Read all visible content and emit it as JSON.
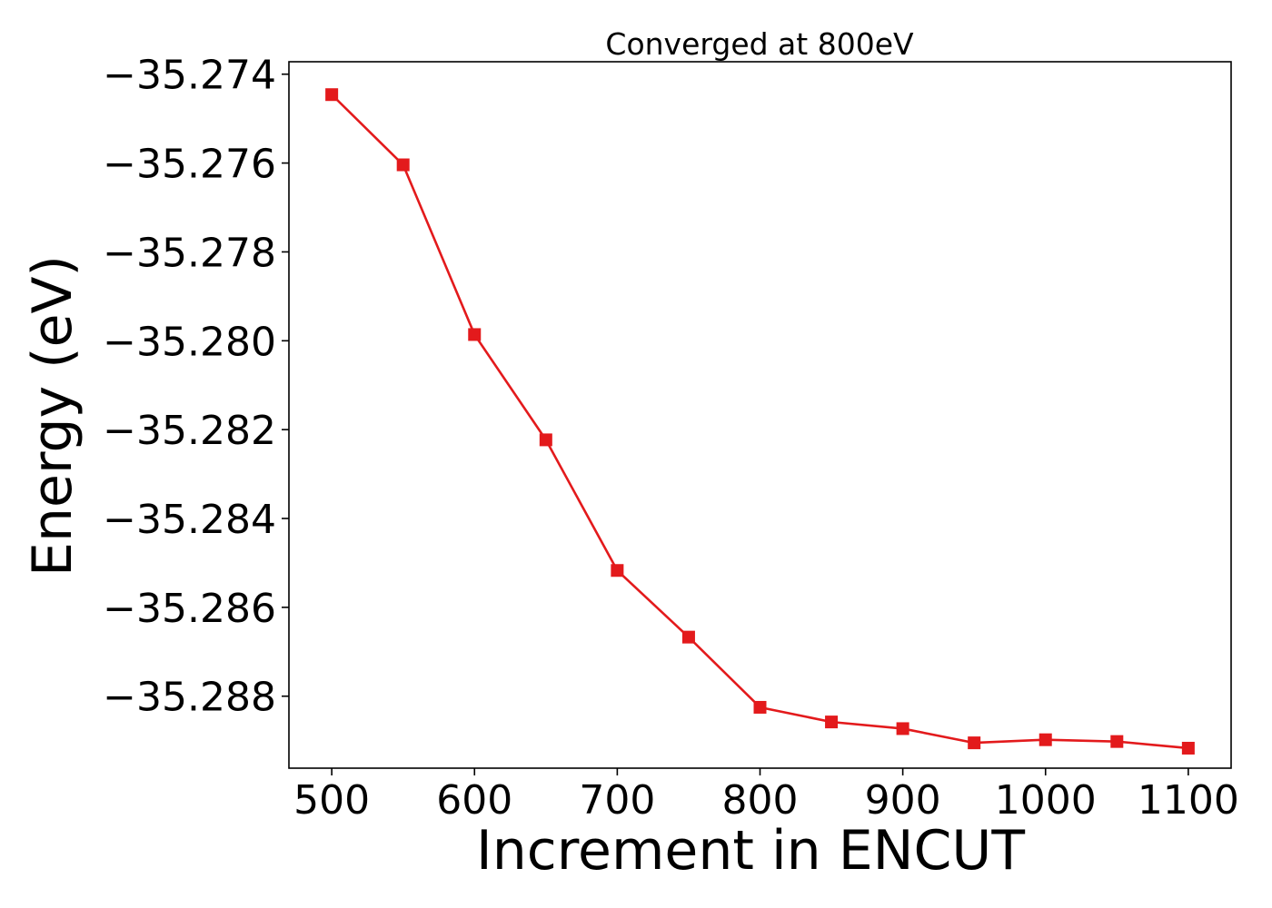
{
  "chart_data": {
    "type": "line",
    "title": "Converged at 800eV",
    "xlabel": "Increment in ENCUT",
    "ylabel": "Energy (eV)",
    "x": [
      500,
      550,
      600,
      650,
      700,
      750,
      800,
      850,
      900,
      950,
      1000,
      1050,
      1100
    ],
    "series": [
      {
        "values": [
          -35.27446,
          -35.27604,
          -35.27986,
          -35.28223,
          -35.28517,
          -35.28667,
          -35.28825,
          -35.28858,
          -35.28873,
          -35.28905,
          -35.28898,
          -35.28902,
          -35.28917
        ],
        "color": "#e31a1c",
        "marker": "square"
      }
    ],
    "xlim": [
      470,
      1130
    ],
    "ylim": [
      -35.28962,
      -35.27372
    ],
    "xticks": [
      500,
      600,
      700,
      800,
      900,
      1000,
      1100
    ],
    "xtick_labels": [
      "500",
      "600",
      "700",
      "800",
      "900",
      "1000",
      "1100"
    ],
    "yticks": [
      -35.274,
      -35.276,
      -35.278,
      -35.28,
      -35.282,
      -35.284,
      -35.286,
      -35.288
    ],
    "ytick_labels": [
      "−35.274",
      "−35.276",
      "−35.278",
      "−35.280",
      "−35.282",
      "−35.284",
      "−35.286",
      "−35.288"
    ],
    "grid": false,
    "legend": "none"
  }
}
